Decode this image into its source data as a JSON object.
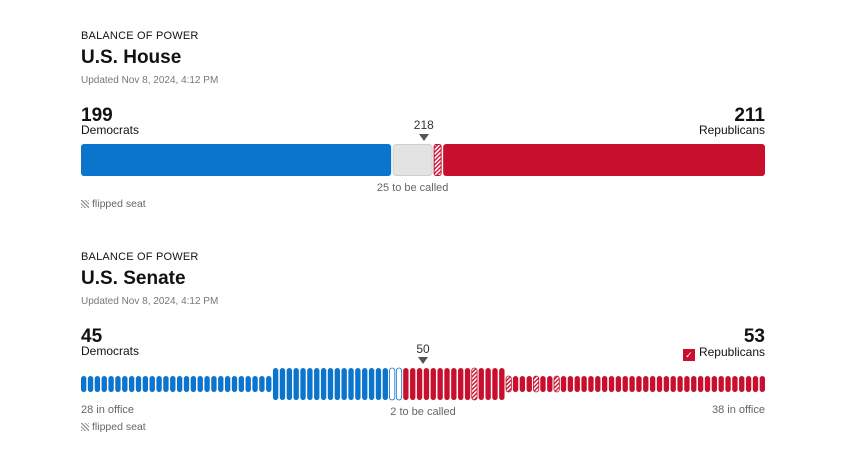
{
  "chart_data": [
    {
      "type": "bar",
      "kicker": "BALANCE OF POWER",
      "title": "U.S. House",
      "updated": "Updated Nov 8, 2024, 4:12 PM",
      "total": 435,
      "majority": 218,
      "majority_label": "218",
      "dem": {
        "count": 199,
        "count_label": "199",
        "label": "Democrats",
        "color": "#0b74cc"
      },
      "rep": {
        "count": 211,
        "count_label": "211",
        "label": "Republicans",
        "color": "#c8102e",
        "flipped": 2
      },
      "uncalled": {
        "count": 25,
        "label": "25 to be called",
        "color": "#e3e3e3"
      },
      "flipped_note": "flipped seat"
    },
    {
      "type": "bar",
      "kicker": "BALANCE OF POWER",
      "title": "U.S. Senate",
      "updated": "Updated Nov 8, 2024, 4:12 PM",
      "total": 100,
      "majority": 50,
      "majority_label": "50",
      "dem": {
        "count": 45,
        "count_label": "45",
        "label": "Democrats",
        "color": "#0b74cc",
        "in_office": 28,
        "in_office_label": "28 in office",
        "flipped": 0
      },
      "rep": {
        "count": 53,
        "count_label": "53",
        "label": "Republicans",
        "color": "#c8102e",
        "in_office": 38,
        "in_office_label": "38 in office",
        "flipped": 4,
        "winner": true,
        "check": "✓"
      },
      "uncalled": {
        "count": 2,
        "label": "2 to be called"
      },
      "flipped_note": "flipped seat"
    }
  ]
}
